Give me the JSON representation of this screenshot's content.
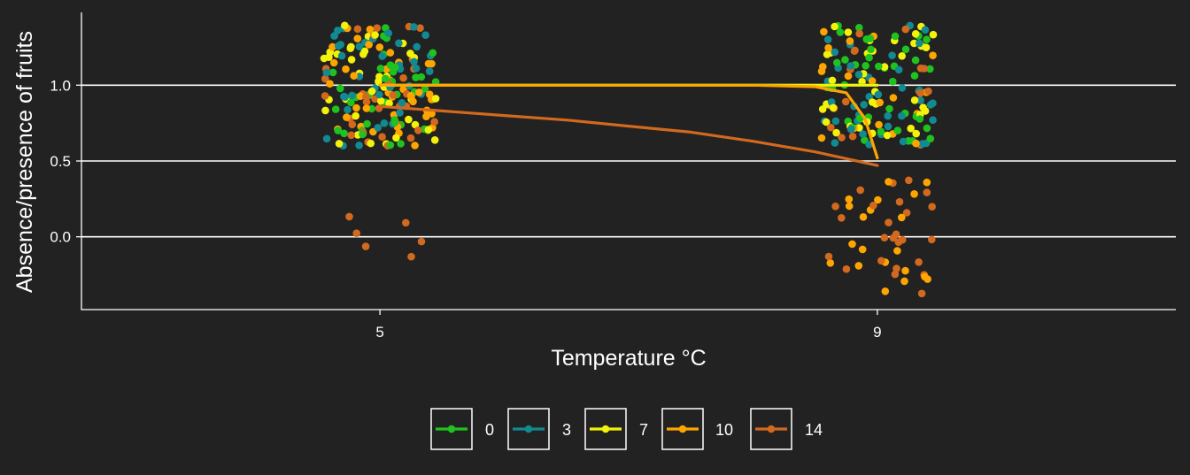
{
  "chart_data": {
    "type": "scatter",
    "title": "",
    "xlabel": "Temperature °C",
    "ylabel": "Absence/presence of fruits",
    "x_categories": [
      "5",
      "9"
    ],
    "x_positions": [
      5,
      9
    ],
    "xlim": [
      2.6,
      11.4
    ],
    "ylim": [
      -0.48,
      1.48
    ],
    "yticks": [
      0.0,
      0.5,
      1.0
    ],
    "ytick_labels": [
      "0.0",
      "0.5",
      "1.0"
    ],
    "grid": "horizontal major lines at 0.0, 0.5, 1.0",
    "legend_position": "bottom",
    "background": "#222222",
    "series": [
      {
        "name": "0",
        "color": "#1fc21f",
        "jitter_counts": [
          {
            "x": 5,
            "y": 1,
            "n": 40
          },
          {
            "x": 9,
            "y": 1,
            "n": 40
          }
        ],
        "fit": [
          [
            5,
            1.0
          ],
          [
            9,
            1.0
          ]
        ]
      },
      {
        "name": "3",
        "color": "#128a91",
        "jitter_counts": [
          {
            "x": 5,
            "y": 1,
            "n": 40
          },
          {
            "x": 9,
            "y": 1,
            "n": 40
          }
        ],
        "fit": [
          [
            5,
            1.0
          ],
          [
            9,
            1.0
          ]
        ]
      },
      {
        "name": "7",
        "color": "#f2f20a",
        "jitter_counts": [
          {
            "x": 5,
            "y": 1,
            "n": 40
          },
          {
            "x": 9,
            "y": 1,
            "n": 40
          }
        ],
        "fit": [
          [
            5,
            1.0
          ],
          [
            9,
            1.0
          ]
        ]
      },
      {
        "name": "10",
        "color": "#ffa500",
        "jitter_counts": [
          {
            "x": 5,
            "y": 1,
            "n": 40
          },
          {
            "x": 9,
            "y": 1,
            "n": 20
          },
          {
            "x": 9,
            "y": 0,
            "n": 20
          }
        ],
        "fit": [
          [
            5,
            1.0
          ],
          [
            6,
            1.0
          ],
          [
            7,
            1.0
          ],
          [
            8,
            1.0
          ],
          [
            8.5,
            0.99
          ],
          [
            8.75,
            0.95
          ],
          [
            8.9,
            0.78
          ],
          [
            9,
            0.52
          ]
        ]
      },
      {
        "name": "14",
        "color": "#d2691e",
        "jitter_counts": [
          {
            "x": 5,
            "y": 1,
            "n": 34
          },
          {
            "x": 5,
            "y": 0,
            "n": 6
          },
          {
            "x": 9,
            "y": 1,
            "n": 15
          },
          {
            "x": 9,
            "y": 0,
            "n": 25
          }
        ],
        "fit": [
          [
            5,
            0.86
          ],
          [
            5.5,
            0.83
          ],
          [
            6,
            0.8
          ],
          [
            6.5,
            0.77
          ],
          [
            7,
            0.73
          ],
          [
            7.5,
            0.69
          ],
          [
            8,
            0.63
          ],
          [
            8.5,
            0.56
          ],
          [
            9,
            0.47
          ]
        ]
      }
    ],
    "jitter_width": 0.45,
    "jitter_height": 0.4
  }
}
